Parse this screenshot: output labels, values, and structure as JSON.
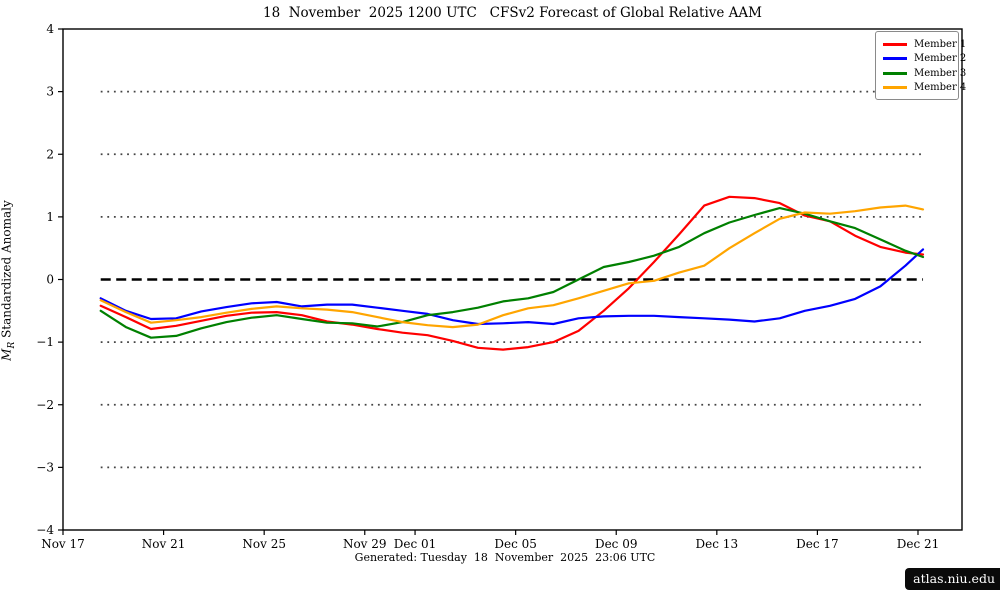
{
  "title": "18  November  2025 1200 UTC   CFSv2 Forecast of Global Relative AAM",
  "footer": "Generated: Tuesday  18  November  2025  23:06 UTC",
  "watermark": "atlas.niu.edu",
  "ylabel": {
    "var": "M",
    "sub": "R",
    "text": " Standardized Anomaly"
  },
  "chart_data": {
    "type": "line",
    "title": "18  November  2025 1200 UTC   CFSv2 Forecast of Global Relative AAM",
    "ylabel": "M_R Standardized Anomaly",
    "xlim_days": [
      0,
      35.75
    ],
    "ylim": [
      -4,
      4
    ],
    "grid": "horizontal-only",
    "legend_position": "top-right",
    "x_ticks": [
      {
        "day": 0,
        "label": "Nov 17"
      },
      {
        "day": 4,
        "label": "Nov 21"
      },
      {
        "day": 8,
        "label": "Nov 25"
      },
      {
        "day": 12,
        "label": "Nov 29"
      },
      {
        "day": 14,
        "label": "Dec 01"
      },
      {
        "day": 18,
        "label": "Dec 05"
      },
      {
        "day": 22,
        "label": "Dec 09"
      },
      {
        "day": 26,
        "label": "Dec 13"
      },
      {
        "day": 30,
        "label": "Dec 17"
      },
      {
        "day": 34,
        "label": "Dec 21"
      }
    ],
    "y_ticks": [
      {
        "value": -4,
        "label": "−4"
      },
      {
        "value": -3,
        "label": "−3"
      },
      {
        "value": -2,
        "label": "−2"
      },
      {
        "value": -1,
        "label": "−1"
      },
      {
        "value": 0,
        "label": "0"
      },
      {
        "value": 1,
        "label": "1"
      },
      {
        "value": 2,
        "label": "2"
      },
      {
        "value": 3,
        "label": "3"
      },
      {
        "value": 4,
        "label": "4"
      }
    ],
    "reference_lines": {
      "dotted_levels": [
        3,
        2,
        1,
        -1,
        -2,
        -3
      ],
      "dashed_zero_level": 0
    },
    "x_days": [
      1.5,
      2.5,
      3.5,
      4.5,
      5.5,
      6.5,
      7.5,
      8.5,
      9.5,
      10.5,
      11.5,
      12.5,
      13.5,
      14.5,
      15.5,
      16.5,
      17.5,
      18.5,
      19.5,
      20.5,
      21.5,
      22.5,
      23.5,
      24.5,
      25.5,
      26.5,
      27.5,
      28.5,
      29.5,
      30.5,
      31.5,
      32.5,
      33.5,
      34.2
    ],
    "series": [
      {
        "name": "Member 1",
        "color": "#ff0000",
        "values": [
          -0.42,
          -0.6,
          -0.79,
          -0.74,
          -0.66,
          -0.58,
          -0.53,
          -0.52,
          -0.57,
          -0.67,
          -0.72,
          -0.79,
          -0.85,
          -0.89,
          -0.98,
          -1.09,
          -1.12,
          -1.08,
          -1.0,
          -0.82,
          -0.5,
          -0.14,
          0.28,
          0.72,
          1.18,
          1.32,
          1.3,
          1.22,
          1.02,
          0.93,
          0.7,
          0.52,
          0.43,
          0.4
        ]
      },
      {
        "name": "Member 2",
        "color": "#0000ff",
        "values": [
          -0.3,
          -0.5,
          -0.63,
          -0.62,
          -0.51,
          -0.44,
          -0.38,
          -0.36,
          -0.43,
          -0.4,
          -0.4,
          -0.45,
          -0.5,
          -0.55,
          -0.65,
          -0.71,
          -0.7,
          -0.68,
          -0.71,
          -0.62,
          -0.59,
          -0.58,
          -0.58,
          -0.6,
          -0.62,
          -0.64,
          -0.67,
          -0.62,
          -0.5,
          -0.42,
          -0.31,
          -0.11,
          0.22,
          0.48
        ]
      },
      {
        "name": "Member 3",
        "color": "#008000",
        "values": [
          -0.5,
          -0.76,
          -0.93,
          -0.9,
          -0.78,
          -0.68,
          -0.61,
          -0.57,
          -0.63,
          -0.69,
          -0.7,
          -0.75,
          -0.68,
          -0.57,
          -0.52,
          -0.45,
          -0.35,
          -0.3,
          -0.2,
          0.0,
          0.2,
          0.28,
          0.38,
          0.52,
          0.74,
          0.91,
          1.03,
          1.14,
          1.05,
          0.93,
          0.82,
          0.64,
          0.46,
          0.36
        ]
      },
      {
        "name": "Member 4",
        "color": "#ffa500",
        "values": [
          -0.33,
          -0.52,
          -0.69,
          -0.65,
          -0.6,
          -0.53,
          -0.47,
          -0.43,
          -0.46,
          -0.48,
          -0.52,
          -0.6,
          -0.68,
          -0.73,
          -0.76,
          -0.72,
          -0.57,
          -0.46,
          -0.41,
          -0.3,
          -0.18,
          -0.06,
          -0.02,
          0.11,
          0.22,
          0.5,
          0.74,
          0.97,
          1.07,
          1.05,
          1.09,
          1.15,
          1.18,
          1.12
        ]
      }
    ]
  }
}
